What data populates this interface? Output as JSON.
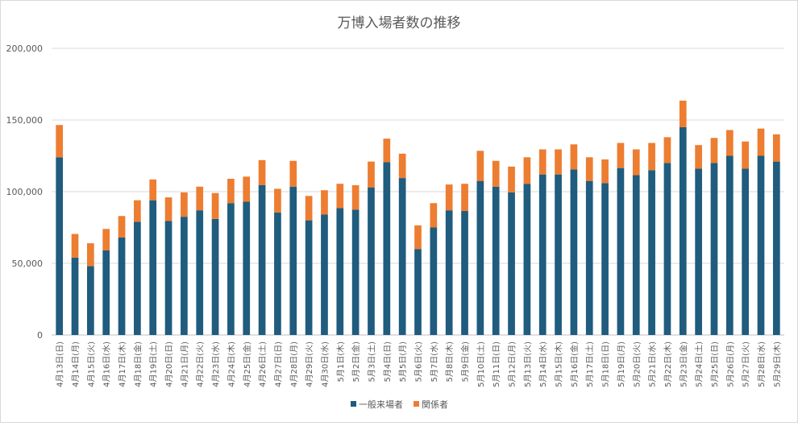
{
  "chart_data": {
    "type": "bar",
    "stacked": true,
    "title": "万博入場者数の推移",
    "xlabel": "",
    "ylabel": "",
    "ylim": [
      0,
      200000
    ],
    "yticks": [
      0,
      50000,
      100000,
      150000,
      200000
    ],
    "ytick_labels": [
      "0",
      "50,000",
      "100,000",
      "150,000",
      "200,000"
    ],
    "grid": true,
    "legend_position": "bottom",
    "categories": [
      "4月13日(日)",
      "4月14日(月)",
      "4月15日(火)",
      "4月16日(水)",
      "4月17日(木)",
      "4月18日(金)",
      "4月19日(土)",
      "4月20日(日)",
      "4月21日(月)",
      "4月22日(火)",
      "4月23日(水)",
      "4月24日(木)",
      "4月25日(金)",
      "4月26日(土)",
      "4月27日(日)",
      "4月28日(月)",
      "4月29日(火)",
      "4月30日(水)",
      "5月1日(木)",
      "5月2日(金)",
      "5月3日(土)",
      "5月4日(日)",
      "5月5日(月)",
      "5月6日(火)",
      "5月7日(水)",
      "5月8日(木)",
      "5月9日(金)",
      "5月10日(土)",
      "5月11日(日)",
      "5月12日(月)",
      "5月13日(火)",
      "5月14日(水)",
      "5月15日(木)",
      "5月16日(金)",
      "5月17日(土)",
      "5月18日(日)",
      "5月19日(月)",
      "5月20日(火)",
      "5月21日(水)",
      "5月22日(木)",
      "5月23日(金)",
      "5月24日(土)",
      "5月25日(日)",
      "5月26日(月)",
      "5月27日(火)",
      "5月28日(水)",
      "5月29日(木)"
    ],
    "series": [
      {
        "name": "一般来場者",
        "color": "#1f5c7e",
        "values": [
          124000,
          54000,
          48000,
          59000,
          68000,
          79000,
          94000,
          79500,
          82500,
          87000,
          81000,
          92000,
          93000,
          104500,
          85500,
          103500,
          80000,
          84000,
          88500,
          87500,
          103000,
          120500,
          109500,
          60000,
          75000,
          87000,
          86500,
          107500,
          103500,
          99500,
          105500,
          112000,
          112000,
          115500,
          107500,
          106000,
          116500,
          111500,
          115000,
          120000,
          145000,
          116000,
          120000,
          125000,
          116000,
          125000,
          121000
        ]
      },
      {
        "name": "関係者",
        "color": "#ed7d31",
        "values": [
          22500,
          16500,
          16000,
          15000,
          15000,
          15000,
          14500,
          16500,
          17000,
          16500,
          18000,
          17000,
          17500,
          17500,
          16500,
          18000,
          17000,
          17000,
          17000,
          17000,
          18000,
          16500,
          17000,
          16500,
          17000,
          18000,
          19000,
          21000,
          18000,
          18000,
          18500,
          17500,
          17500,
          17500,
          16500,
          16500,
          17500,
          18000,
          19000,
          18000,
          18500,
          16500,
          17500,
          18000,
          19000,
          19000,
          19000
        ]
      }
    ]
  }
}
